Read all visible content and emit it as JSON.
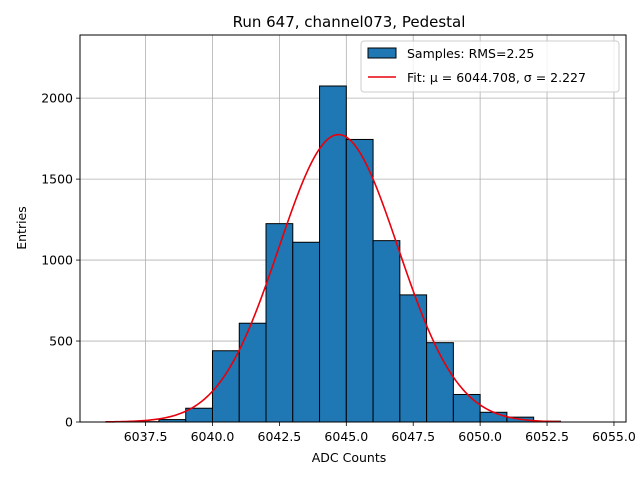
{
  "chart_data": {
    "type": "bar",
    "title": "Run 647, channel073, Pedestal",
    "xlabel": "ADC Counts",
    "ylabel": "Entries",
    "xlim": [
      6035.05,
      6055.45
    ],
    "ylim": [
      0,
      2390
    ],
    "xticks": [
      6037.5,
      6040.0,
      6042.5,
      6045.0,
      6047.5,
      6050.0,
      6052.5,
      6055.0
    ],
    "xtick_labels": [
      "6037.5",
      "6040.0",
      "6042.5",
      "6045.0",
      "6047.5",
      "6050.0",
      "6052.5",
      "6055.0"
    ],
    "yticks": [
      0,
      500,
      1000,
      1500,
      2000
    ],
    "ytick_labels": [
      "0",
      "500",
      "1000",
      "1500",
      "2000"
    ],
    "grid": true,
    "bins": [
      {
        "x0": 6037,
        "x1": 6038,
        "count": 2
      },
      {
        "x0": 6038,
        "x1": 6039,
        "count": 15
      },
      {
        "x0": 6039,
        "x1": 6040,
        "count": 85
      },
      {
        "x0": 6040,
        "x1": 6041,
        "count": 440
      },
      {
        "x0": 6041,
        "x1": 6042,
        "count": 610
      },
      {
        "x0": 6042,
        "x1": 6043,
        "count": 1225
      },
      {
        "x0": 6043,
        "x1": 6044,
        "count": 1110
      },
      {
        "x0": 6044,
        "x1": 6045,
        "count": 2075
      },
      {
        "x0": 6045,
        "x1": 6046,
        "count": 1745
      },
      {
        "x0": 6046,
        "x1": 6047,
        "count": 1120
      },
      {
        "x0": 6047,
        "x1": 6048,
        "count": 785
      },
      {
        "x0": 6048,
        "x1": 6049,
        "count": 490
      },
      {
        "x0": 6049,
        "x1": 6050,
        "count": 170
      },
      {
        "x0": 6050,
        "x1": 6051,
        "count": 60
      },
      {
        "x0": 6051,
        "x1": 6052,
        "count": 30
      },
      {
        "x0": 6052,
        "x1": 6053,
        "count": 5
      }
    ],
    "fit": {
      "mu": 6044.708,
      "sigma": 2.227,
      "amplitude": 1775,
      "x_range": [
        6036.0,
        6053.0
      ]
    },
    "legend": {
      "placement": "top-right",
      "entries": [
        {
          "label": "Samples: RMS=2.25",
          "kind": "patch"
        },
        {
          "label": "Fit: μ = 6044.708, σ = 2.227",
          "kind": "line"
        }
      ]
    },
    "colors": {
      "bar_fill": "#1f77b4",
      "bar_edge": "#000000",
      "fit_line": "#e8000b",
      "grid": "#b0b0b0"
    }
  }
}
